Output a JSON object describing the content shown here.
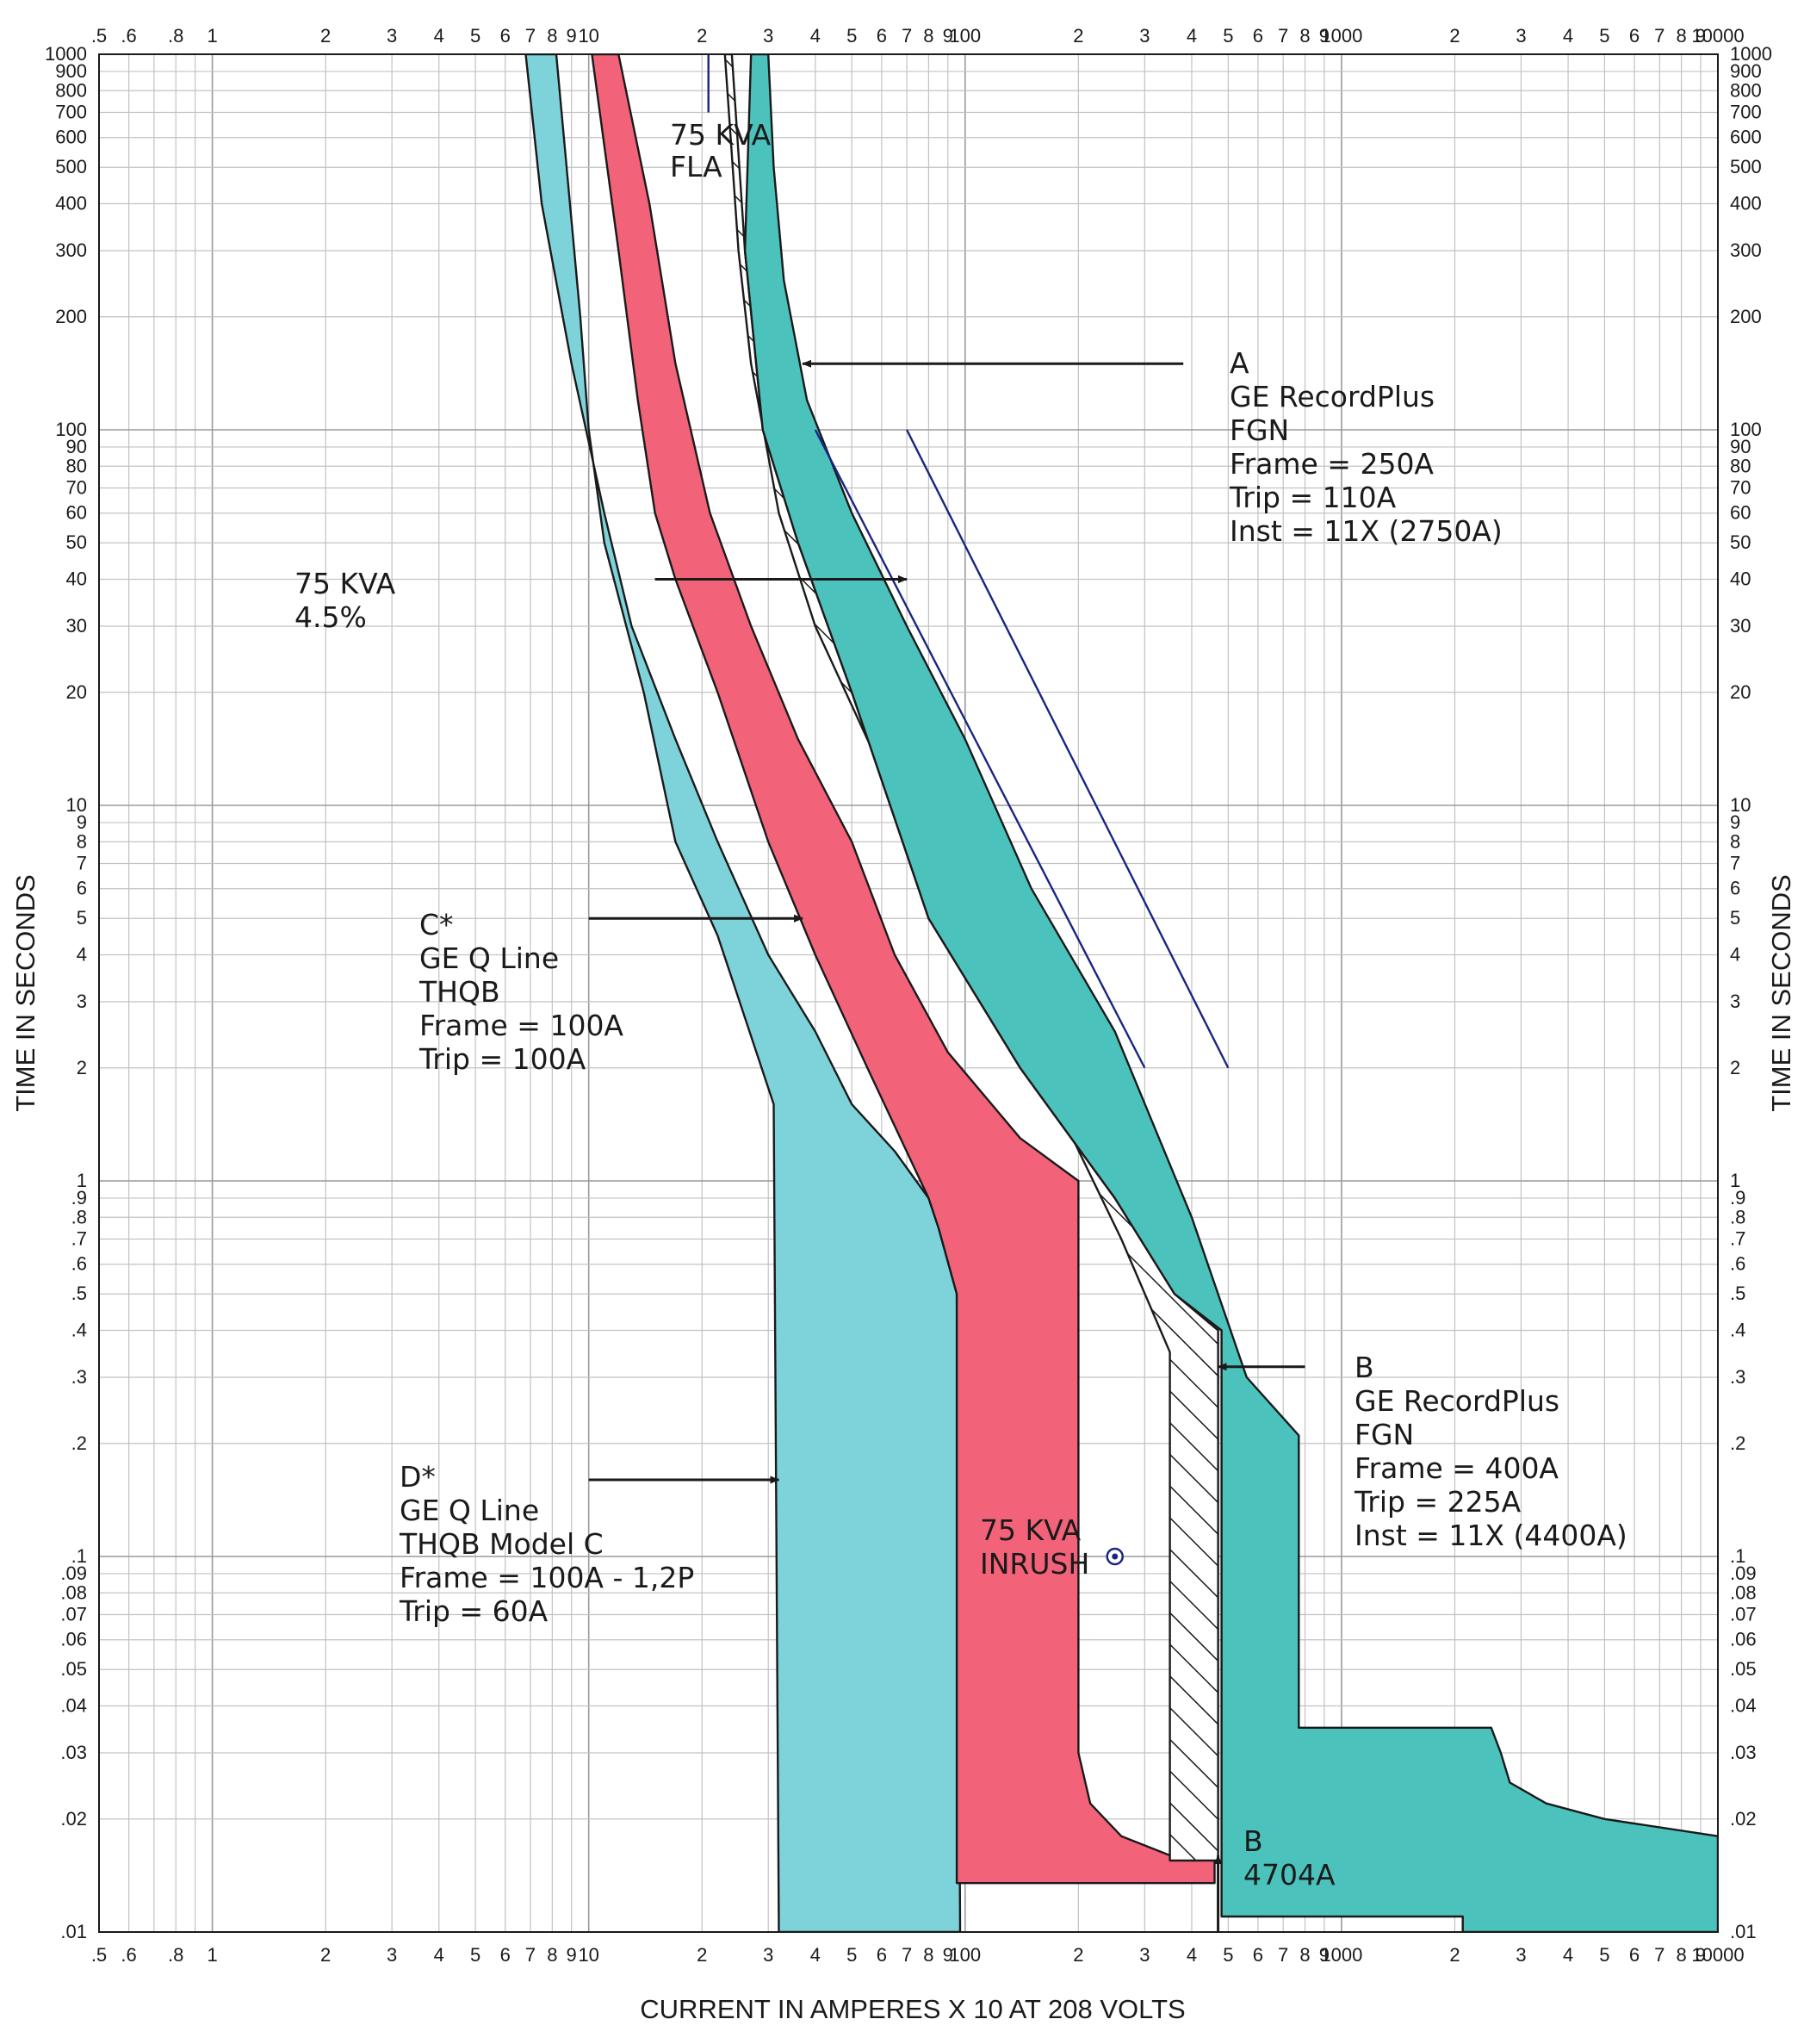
{
  "chart_data": {
    "type": "line",
    "title": "",
    "xlabel": "CURRENT IN AMPERES X 10 AT 208 VOLTS",
    "ylabel": "TIME IN SECONDS",
    "x_scale": "log",
    "y_scale": "log",
    "xlim": [
      0.5,
      10000
    ],
    "ylim": [
      0.01,
      1000
    ],
    "grid": true,
    "x_tick_labels": [
      {
        "v": 0.5,
        "t": ".5"
      },
      {
        "v": 0.6,
        "t": ".6"
      },
      {
        "v": 0.8,
        "t": ".8"
      },
      {
        "v": 1,
        "t": "1"
      },
      {
        "v": 2,
        "t": "2"
      },
      {
        "v": 3,
        "t": "3"
      },
      {
        "v": 4,
        "t": "4"
      },
      {
        "v": 5,
        "t": "5"
      },
      {
        "v": 6,
        "t": "6"
      },
      {
        "v": 7,
        "t": "7"
      },
      {
        "v": 8,
        "t": "8"
      },
      {
        "v": 9,
        "t": "9"
      },
      {
        "v": 10,
        "t": "10"
      },
      {
        "v": 20,
        "t": "2"
      },
      {
        "v": 30,
        "t": "3"
      },
      {
        "v": 40,
        "t": "4"
      },
      {
        "v": 50,
        "t": "5"
      },
      {
        "v": 60,
        "t": "6"
      },
      {
        "v": 70,
        "t": "7"
      },
      {
        "v": 80,
        "t": "8"
      },
      {
        "v": 90,
        "t": "9"
      },
      {
        "v": 100,
        "t": "100"
      },
      {
        "v": 200,
        "t": "2"
      },
      {
        "v": 300,
        "t": "3"
      },
      {
        "v": 400,
        "t": "4"
      },
      {
        "v": 500,
        "t": "5"
      },
      {
        "v": 600,
        "t": "6"
      },
      {
        "v": 700,
        "t": "7"
      },
      {
        "v": 800,
        "t": "8"
      },
      {
        "v": 900,
        "t": "9"
      },
      {
        "v": 1000,
        "t": "1000"
      },
      {
        "v": 2000,
        "t": "2"
      },
      {
        "v": 3000,
        "t": "3"
      },
      {
        "v": 4000,
        "t": "4"
      },
      {
        "v": 5000,
        "t": "5"
      },
      {
        "v": 6000,
        "t": "6"
      },
      {
        "v": 7000,
        "t": "7"
      },
      {
        "v": 8000,
        "t": "8"
      },
      {
        "v": 9000,
        "t": "9"
      },
      {
        "v": 10000,
        "t": "10000"
      }
    ],
    "y_tick_labels": [
      {
        "v": 1000,
        "t": "1000"
      },
      {
        "v": 900,
        "t": "900"
      },
      {
        "v": 800,
        "t": "800"
      },
      {
        "v": 700,
        "t": "700"
      },
      {
        "v": 600,
        "t": "600"
      },
      {
        "v": 500,
        "t": "500"
      },
      {
        "v": 400,
        "t": "400"
      },
      {
        "v": 300,
        "t": "300"
      },
      {
        "v": 200,
        "t": "200"
      },
      {
        "v": 100,
        "t": "100"
      },
      {
        "v": 90,
        "t": "90"
      },
      {
        "v": 80,
        "t": "80"
      },
      {
        "v": 70,
        "t": "70"
      },
      {
        "v": 60,
        "t": "60"
      },
      {
        "v": 50,
        "t": "50"
      },
      {
        "v": 40,
        "t": "40"
      },
      {
        "v": 30,
        "t": "30"
      },
      {
        "v": 20,
        "t": "20"
      },
      {
        "v": 10,
        "t": "10"
      },
      {
        "v": 9,
        "t": "9"
      },
      {
        "v": 8,
        "t": "8"
      },
      {
        "v": 7,
        "t": "7"
      },
      {
        "v": 6,
        "t": "6"
      },
      {
        "v": 5,
        "t": "5"
      },
      {
        "v": 4,
        "t": "4"
      },
      {
        "v": 3,
        "t": "3"
      },
      {
        "v": 2,
        "t": "2"
      },
      {
        "v": 1,
        "t": "1"
      },
      {
        "v": 0.9,
        "t": ".9"
      },
      {
        "v": 0.8,
        "t": ".8"
      },
      {
        "v": 0.7,
        "t": ".7"
      },
      {
        "v": 0.6,
        "t": ".6"
      },
      {
        "v": 0.5,
        "t": ".5"
      },
      {
        "v": 0.4,
        "t": ".4"
      },
      {
        "v": 0.3,
        "t": ".3"
      },
      {
        "v": 0.2,
        "t": ".2"
      },
      {
        "v": 0.1,
        "t": ".1"
      },
      {
        "v": 0.09,
        "t": ".09"
      },
      {
        "v": 0.08,
        "t": ".08"
      },
      {
        "v": 0.07,
        "t": ".07"
      },
      {
        "v": 0.06,
        "t": ".06"
      },
      {
        "v": 0.05,
        "t": ".05"
      },
      {
        "v": 0.04,
        "t": ".04"
      },
      {
        "v": 0.03,
        "t": ".03"
      },
      {
        "v": 0.02,
        "t": ".02"
      },
      {
        "v": 0.01,
        "t": ".01"
      }
    ],
    "series": [
      {
        "name": "D*",
        "kind": "band",
        "color": "#7ed3db",
        "points": [
          [
            6.8,
            1000
          ],
          [
            7.5,
            400
          ],
          [
            9,
            150
          ],
          [
            11,
            60
          ],
          [
            13,
            30
          ],
          [
            17,
            15
          ],
          [
            22,
            8
          ],
          [
            30,
            4
          ],
          [
            40,
            2.5
          ],
          [
            50,
            1.6
          ],
          [
            65,
            1.2
          ],
          [
            80,
            0.9
          ],
          [
            85,
            0.75
          ],
          [
            95,
            0.5
          ],
          [
            97,
            0.01
          ],
          [
            32,
            0.01
          ],
          [
            31,
            1.6
          ],
          [
            22,
            4.5
          ],
          [
            17,
            8
          ],
          [
            14,
            20
          ],
          [
            11,
            50
          ],
          [
            10,
            100
          ],
          [
            9.5,
            200
          ],
          [
            8.2,
            1000
          ]
        ]
      },
      {
        "name": "C*",
        "kind": "band",
        "color": "#f2637a",
        "points": [
          [
            12,
            1000
          ],
          [
            14.5,
            400
          ],
          [
            17,
            150
          ],
          [
            21,
            60
          ],
          [
            27,
            30
          ],
          [
            36,
            15
          ],
          [
            50,
            8
          ],
          [
            65,
            4
          ],
          [
            90,
            2.2
          ],
          [
            140,
            1.3
          ],
          [
            200,
            1
          ],
          [
            200,
            0.03
          ],
          [
            215,
            0.022
          ],
          [
            260,
            0.018
          ],
          [
            350,
            0.016
          ],
          [
            460,
            0.016
          ],
          [
            460,
            0.0135
          ],
          [
            95,
            0.0135
          ],
          [
            95,
            0.5
          ],
          [
            85,
            0.75
          ],
          [
            80,
            0.9
          ],
          [
            55,
            2
          ],
          [
            40,
            4
          ],
          [
            30,
            8
          ],
          [
            22,
            20
          ],
          [
            17,
            40
          ],
          [
            15,
            60
          ],
          [
            13.5,
            120
          ],
          [
            12,
            300
          ],
          [
            10.2,
            1000
          ]
        ]
      },
      {
        "name": "B",
        "kind": "band",
        "color": "#ffffff",
        "hatched": true,
        "points": [
          [
            24,
            1000
          ],
          [
            26,
            300
          ],
          [
            29,
            100
          ],
          [
            36,
            50
          ],
          [
            50,
            20
          ],
          [
            80,
            5
          ],
          [
            140,
            2
          ],
          [
            250,
            0.9
          ],
          [
            360,
            0.5
          ],
          [
            470,
            0.4
          ],
          [
            470,
            0.0155
          ],
          [
            350,
            0.0155
          ],
          [
            350,
            0.35
          ],
          [
            260,
            0.7
          ],
          [
            180,
            1.5
          ],
          [
            120,
            3
          ],
          [
            80,
            7
          ],
          [
            55,
            15
          ],
          [
            40,
            30
          ],
          [
            32,
            60
          ],
          [
            27,
            150
          ],
          [
            25,
            300
          ],
          [
            23,
            1000
          ]
        ]
      },
      {
        "name": "A",
        "kind": "band",
        "color": "#4cc2bc",
        "points": [
          [
            30,
            1000
          ],
          [
            31,
            500
          ],
          [
            33,
            250
          ],
          [
            38,
            120
          ],
          [
            50,
            60
          ],
          [
            70,
            30
          ],
          [
            100,
            15
          ],
          [
            150,
            6
          ],
          [
            250,
            2.5
          ],
          [
            400,
            0.8
          ],
          [
            560,
            0.3
          ],
          [
            770,
            0.21
          ],
          [
            770,
            0.035
          ],
          [
            2500,
            0.035
          ],
          [
            2650,
            0.03
          ],
          [
            2800,
            0.025
          ],
          [
            3500,
            0.022
          ],
          [
            5000,
            0.02
          ],
          [
            10000,
            0.018
          ],
          [
            10000,
            0.01
          ],
          [
            2100,
            0.01
          ],
          [
            2100,
            0.011
          ],
          [
            480,
            0.011
          ],
          [
            480,
            0.4
          ],
          [
            360,
            0.5
          ],
          [
            250,
            0.9
          ],
          [
            140,
            2
          ],
          [
            80,
            5
          ],
          [
            50,
            20
          ],
          [
            36,
            50
          ],
          [
            29,
            100
          ],
          [
            26,
            300
          ],
          [
            27,
            1000
          ]
        ]
      },
      {
        "name": "75 KVA 4.5%",
        "kind": "line",
        "color": "#1a2580",
        "segments": [
          [
            [
              40,
              100
            ],
            [
              300,
              2
            ]
          ],
          [
            [
              70,
              100
            ],
            [
              500,
              2
            ]
          ]
        ]
      }
    ],
    "marker": {
      "name": "75 KVA INRUSH",
      "x": 250,
      "y": 0.1
    },
    "annotations": {
      "fla": [
        "75 KVA",
        "FLA"
      ],
      "kva_pct": [
        "75 KVA",
        "4.5%"
      ],
      "inrush": [
        "75 KVA",
        "INRUSH"
      ],
      "a": [
        "A",
        "GE RecordPlus",
        "FGN",
        "Frame = 250A",
        "Trip = 110A",
        "Inst = 11X  (2750A)"
      ],
      "b_top": [
        "B",
        "GE RecordPlus",
        "FGN",
        "Frame = 400A",
        "Trip = 225A",
        "Inst = 11X  (4400A)"
      ],
      "c": [
        "C*",
        "GE Q Line",
        "THQB",
        "Frame = 100A",
        "Trip = 100A"
      ],
      "d": [
        "D*",
        "GE Q Line",
        "THQB Model C",
        "Frame = 100A - 1,2P",
        "Trip = 60A"
      ],
      "b_bottom": [
        "B",
        "4704A"
      ]
    },
    "arrows": [
      {
        "from": [
          380,
          150
        ],
        "to": [
          37,
          150
        ]
      },
      {
        "from": [
          15,
          40
        ],
        "to": [
          70,
          40
        ]
      },
      {
        "from": [
          10,
          5
        ],
        "to": [
          37,
          5
        ]
      },
      {
        "from": [
          10,
          0.16
        ],
        "to": [
          32,
          0.16
        ]
      },
      {
        "from": [
          800,
          0.32
        ],
        "to": [
          470,
          0.32
        ]
      },
      {
        "from": [
          470,
          0.01
        ],
        "to": [
          470,
          0.016
        ]
      }
    ],
    "fla_line": {
      "x": 20.8,
      "y": [
        700,
        1000
      ]
    }
  }
}
